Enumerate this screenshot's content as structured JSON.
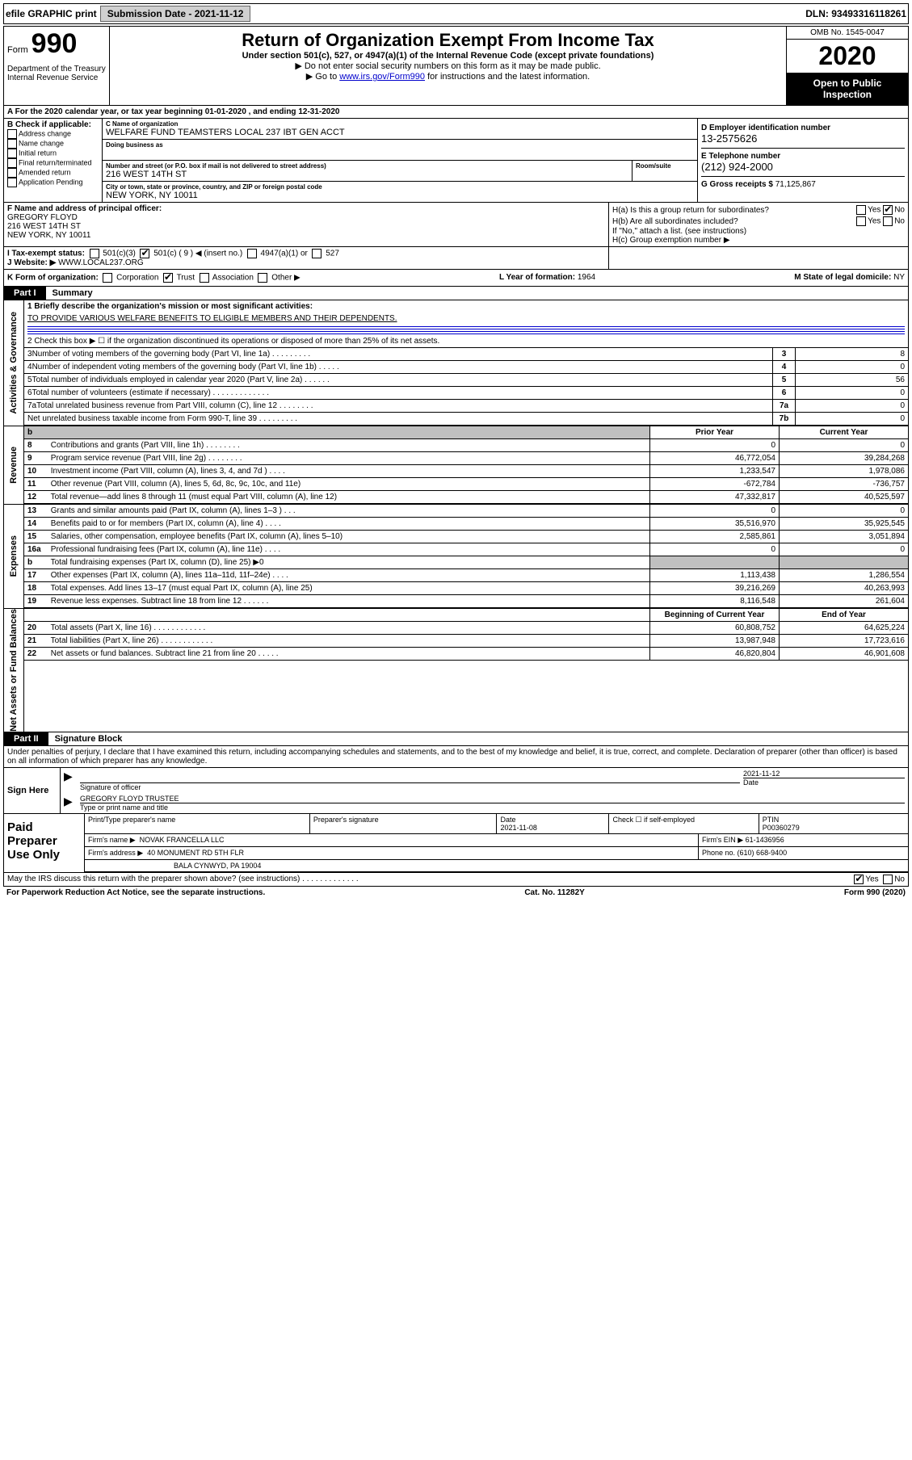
{
  "top": {
    "efile": "efile GRAPHIC print",
    "sub_lbl": "Submission Date - 2021-11-12",
    "dln": "DLN: 93493316118261"
  },
  "header": {
    "form_word": "Form",
    "form_num": "990",
    "dept": "Department of the Treasury\nInternal Revenue Service",
    "title": "Return of Organization Exempt From Income Tax",
    "sub1": "Under section 501(c), 527, or 4947(a)(1) of the Internal Revenue Code (except private foundations)",
    "sub2": "▶ Do not enter social security numbers on this form as it may be made public.",
    "sub3a": "▶ Go to ",
    "sub3_link": "www.irs.gov/Form990",
    "sub3b": " for instructions and the latest information.",
    "omb": "OMB No. 1545-0047",
    "year": "2020",
    "inspect": "Open to Public Inspection"
  },
  "row_a": "A For the 2020 calendar year, or tax year beginning 01-01-2020     , and ending 12-31-2020",
  "b": {
    "hdr": "B Check if applicable:",
    "opts": [
      "Address change",
      "Name change",
      "Initial return",
      "Final return/terminated",
      "Amended return",
      "Application Pending"
    ]
  },
  "c": {
    "name_lbl": "C Name of organization",
    "name": "WELFARE FUND TEAMSTERS LOCAL 237 IBT GEN ACCT",
    "dba_lbl": "Doing business as",
    "addr_lbl": "Number and street (or P.O. box if mail is not delivered to street address)",
    "addr": "216 WEST 14TH ST",
    "room_lbl": "Room/suite",
    "city_lbl": "City or town, state or province, country, and ZIP or foreign postal code",
    "city": "NEW YORK, NY  10011"
  },
  "d": {
    "lbl": "D Employer identification number",
    "val": "13-2575626"
  },
  "e": {
    "lbl": "E Telephone number",
    "val": "(212) 924-2000"
  },
  "g": {
    "lbl": "G Gross receipts $ ",
    "val": "71,125,867"
  },
  "f": {
    "lbl": "F Name and address of principal officer:",
    "name": "GREGORY FLOYD",
    "addr1": "216 WEST 14TH ST",
    "addr2": "NEW YORK, NY  10011"
  },
  "h": {
    "a_lbl": "H(a)  Is this a group return for subordinates?",
    "b_lbl": "H(b)  Are all subordinates included?",
    "note": "If \"No,\" attach a list. (see instructions)",
    "c_lbl": "H(c)  Group exemption number ▶"
  },
  "i": {
    "lbl": "I   Tax-exempt status:",
    "opts": [
      "501(c)(3)",
      "501(c) ( 9 ) ◀ (insert no.)",
      "4947(a)(1) or",
      "527"
    ]
  },
  "j": {
    "lbl": "J   Website: ▶ ",
    "val": "WWW.LOCAL237.ORG"
  },
  "k": {
    "lbl": "K Form of organization:",
    "opts": [
      "Corporation",
      "Trust",
      "Association",
      "Other ▶"
    ]
  },
  "l": {
    "lbl": "L Year of formation: ",
    "val": "1964"
  },
  "m": {
    "lbl": "M State of legal domicile: ",
    "val": "NY"
  },
  "part1": {
    "tab": "Part I",
    "title": "Summary"
  },
  "gov": {
    "l1_lbl": "1   Briefly describe the organization's mission or most significant activities:",
    "l1_val": "TO PROVIDE VARIOUS WELFARE BENEFITS TO ELIGIBLE MEMBERS AND THEIR DEPENDENTS.",
    "l2": "2   Check this box ▶ ☐  if the organization discontinued its operations or disposed of more than 25% of its net assets.",
    "rows": [
      {
        "n": "3",
        "t": "Number of voting members of the governing body (Part VI, line 1a)   .    .    .    .    .    .    .    .    .",
        "c": "3",
        "v": "8"
      },
      {
        "n": "4",
        "t": "Number of independent voting members of the governing body (Part VI, line 1b)   .    .    .    .    .",
        "c": "4",
        "v": "0"
      },
      {
        "n": "5",
        "t": "Total number of individuals employed in calendar year 2020 (Part V, line 2a)   .    .    .    .    .    .",
        "c": "5",
        "v": "56"
      },
      {
        "n": "6",
        "t": "Total number of volunteers (estimate if necessary)   .    .    .    .    .    .    .    .    .    .    .    .    .",
        "c": "6",
        "v": "0"
      },
      {
        "n": "7a",
        "t": "Total unrelated business revenue from Part VIII, column (C), line 12   .    .    .    .    .    .    .    .",
        "c": "7a",
        "v": "0"
      },
      {
        "n": "",
        "t": "Net unrelated business taxable income from Form 990-T, line 39   .    .    .    .    .    .    .    .    .",
        "c": "7b",
        "v": "0"
      }
    ]
  },
  "rev": {
    "hdr_prior": "Prior Year",
    "hdr_curr": "Current Year",
    "rows": [
      {
        "n": "8",
        "t": "Contributions and grants (Part VIII, line 1h)   .    .    .    .    .    .    .    .",
        "p": "0",
        "c": "0"
      },
      {
        "n": "9",
        "t": "Program service revenue (Part VIII, line 2g)   .    .    .    .    .    .    .    .",
        "p": "46,772,054",
        "c": "39,284,268"
      },
      {
        "n": "10",
        "t": "Investment income (Part VIII, column (A), lines 3, 4, and 7d )   .    .    .    .",
        "p": "1,233,547",
        "c": "1,978,086"
      },
      {
        "n": "11",
        "t": "Other revenue (Part VIII, column (A), lines 5, 6d, 8c, 9c, 10c, and 11e)",
        "p": "-672,784",
        "c": "-736,757"
      },
      {
        "n": "12",
        "t": "Total revenue—add lines 8 through 11 (must equal Part VIII, column (A), line 12)",
        "p": "47,332,817",
        "c": "40,525,597"
      }
    ]
  },
  "exp": {
    "rows": [
      {
        "n": "13",
        "t": "Grants and similar amounts paid (Part IX, column (A), lines 1–3 )   .    .    .",
        "p": "0",
        "c": "0"
      },
      {
        "n": "14",
        "t": "Benefits paid to or for members (Part IX, column (A), line 4)   .    .    .    .",
        "p": "35,516,970",
        "c": "35,925,545"
      },
      {
        "n": "15",
        "t": "Salaries, other compensation, employee benefits (Part IX, column (A), lines 5–10)",
        "p": "2,585,861",
        "c": "3,051,894"
      },
      {
        "n": "16a",
        "t": "Professional fundraising fees (Part IX, column (A), line 11e)   .    .    .    .",
        "p": "0",
        "c": "0"
      },
      {
        "n": "b",
        "t": "Total fundraising expenses (Part IX, column (D), line 25) ▶0",
        "p": "",
        "c": "",
        "shade": true
      },
      {
        "n": "17",
        "t": "Other expenses (Part IX, column (A), lines 11a–11d, 11f–24e)   .    .    .    .",
        "p": "1,113,438",
        "c": "1,286,554"
      },
      {
        "n": "18",
        "t": "Total expenses. Add lines 13–17 (must equal Part IX, column (A), line 25)",
        "p": "39,216,269",
        "c": "40,263,993"
      },
      {
        "n": "19",
        "t": "Revenue less expenses. Subtract line 18 from line 12   .    .    .    .    .    .",
        "p": "8,116,548",
        "c": "261,604"
      }
    ]
  },
  "na": {
    "hdr_prior": "Beginning of Current Year",
    "hdr_curr": "End of Year",
    "rows": [
      {
        "n": "20",
        "t": "Total assets (Part X, line 16)   .    .    .    .    .    .    .    .    .    .    .    .",
        "p": "60,808,752",
        "c": "64,625,224"
      },
      {
        "n": "21",
        "t": "Total liabilities (Part X, line 26)   .    .    .    .    .    .    .    .    .    .    .    .",
        "p": "13,987,948",
        "c": "17,723,616"
      },
      {
        "n": "22",
        "t": "Net assets or fund balances. Subtract line 21 from line 20   .    .    .    .    .",
        "p": "46,820,804",
        "c": "46,901,608"
      }
    ]
  },
  "part2": {
    "tab": "Part II",
    "title": "Signature Block",
    "decl": "Under penalties of perjury, I declare that I have examined this return, including accompanying schedules and statements, and to the best of my knowledge and belief, it is true, correct, and complete. Declaration of preparer (other than officer) is based on all information of which preparer has any knowledge."
  },
  "sign": {
    "lbl": "Sign Here",
    "sig_lbl": "Signature of officer",
    "date_lbl": "Date",
    "date": "2021-11-12",
    "name": "GREGORY FLOYD  TRUSTEE",
    "name_lbl": "Type or print name and title"
  },
  "prep": {
    "lbl": "Paid Preparer Use Only",
    "h1": "Print/Type preparer's name",
    "h2": "Preparer's signature",
    "h3": "Date",
    "h3v": "2021-11-08",
    "h4a": "Check ☐ if self-employed",
    "h5": "PTIN",
    "h5v": "P00360279",
    "firm_lbl": "Firm's name      ▶",
    "firm": "NOVAK FRANCELLA LLC",
    "ein_lbl": "Firm's EIN ▶",
    "ein": "61-1436956",
    "addr_lbl": "Firm's address  ▶",
    "addr1": "40 MONUMENT RD 5TH FLR",
    "addr2": "BALA CYNWYD, PA  19004",
    "phone_lbl": "Phone no. ",
    "phone": "(610) 668-9400"
  },
  "footer": {
    "discuss": "May the IRS discuss this return with the preparer shown above? (see instructions)   .    .    .    .    .    .    .    .    .    .    .    .    .",
    "yes": "Yes",
    "no": "No",
    "pra": "For Paperwork Reduction Act Notice, see the separate instructions.",
    "cat": "Cat. No. 11282Y",
    "form": "Form 990 (2020)"
  },
  "sections": {
    "gov": "Activities & Governance",
    "rev": "Revenue",
    "exp": "Expenses",
    "na": "Net Assets or Fund Balances"
  }
}
